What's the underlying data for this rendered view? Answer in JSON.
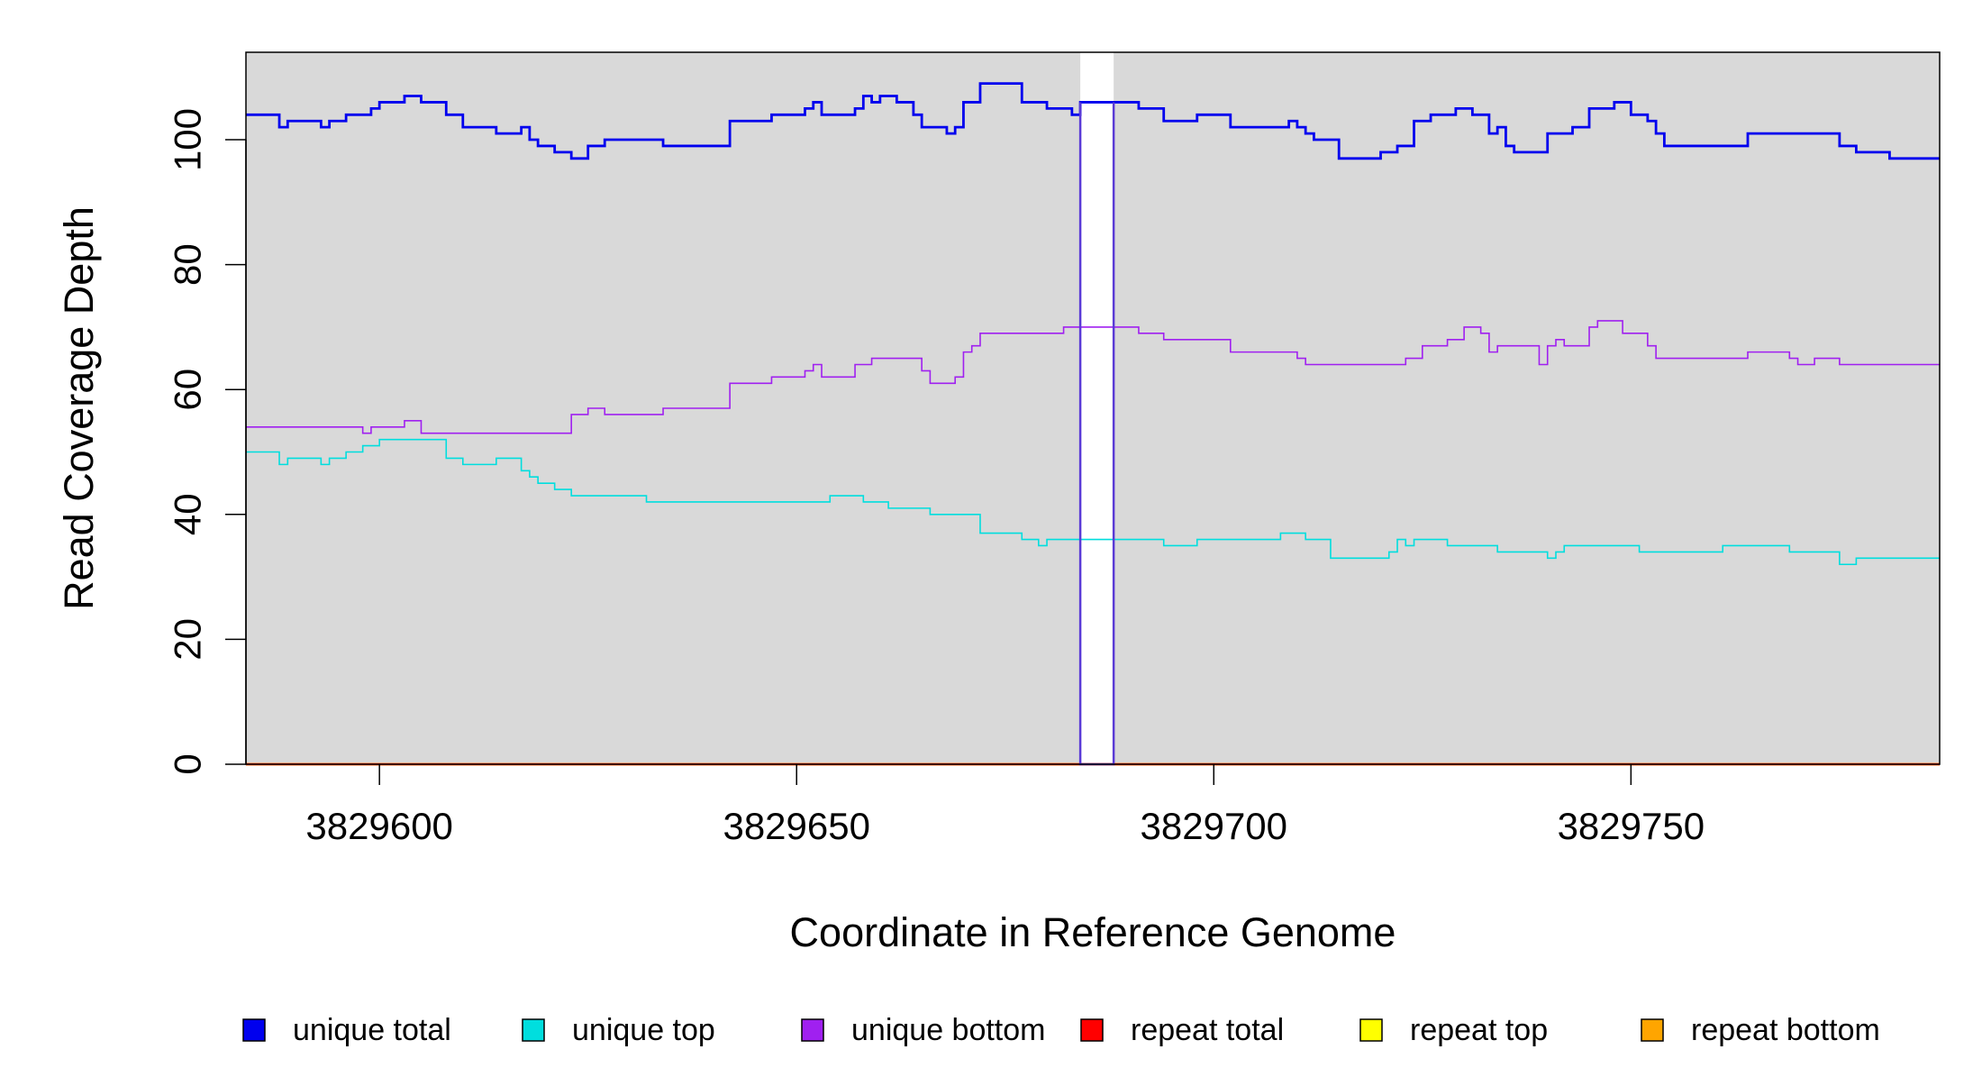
{
  "chart_data": {
    "type": "line",
    "step": true,
    "xlabel": "Coordinate in Reference Genome",
    "ylabel": "Read Coverage Depth",
    "xlim": [
      3829584,
      3829787
    ],
    "ylim": [
      0,
      114
    ],
    "x_ticks": [
      3829600,
      3829650,
      3829700,
      3829750
    ],
    "x_tick_labels": [
      "3829600",
      "3829650",
      "3829700",
      "3829750"
    ],
    "y_ticks": [
      0,
      20,
      40,
      60,
      80,
      100
    ],
    "y_tick_labels": [
      "0",
      "20",
      "40",
      "60",
      "80",
      "100"
    ],
    "plot_background": "#d9d9d9",
    "grid": false,
    "legend_position": "bottom",
    "highlight_region": {
      "x_start": 3829684,
      "x_end": 3829688,
      "color": "#ffffff"
    },
    "series": [
      {
        "name": "unique total",
        "color": "#0000ee",
        "x": [
          3829584,
          3829588,
          3829589,
          3829593,
          3829594,
          3829596,
          3829599,
          3829600,
          3829603,
          3829605,
          3829608,
          3829610,
          3829614,
          3829617,
          3829618,
          3829619,
          3829621,
          3829623,
          3829625,
          3829627,
          3829634,
          3829642,
          3829647,
          3829651,
          3829652,
          3829653,
          3829657,
          3829658,
          3829659,
          3829660,
          3829662,
          3829664,
          3829665,
          3829668,
          3829669,
          3829670,
          3829672,
          3829677,
          3829680,
          3829683,
          3829684,
          3829688,
          3829691,
          3829694,
          3829698,
          3829702,
          3829709,
          3829710,
          3829711,
          3829712,
          3829715,
          3829720,
          3829722,
          3829724,
          3829726,
          3829729,
          3829731,
          3829733,
          3829734,
          3829735,
          3829736,
          3829740,
          3829743,
          3829745,
          3829748,
          3829750,
          3829752,
          3829753,
          3829754,
          3829756,
          3829757,
          3829764,
          3829769,
          3829775,
          3829777,
          3829781,
          3829787
        ],
        "values": [
          104,
          102,
          103,
          102,
          103,
          104,
          105,
          106,
          107,
          106,
          104,
          102,
          101,
          102,
          100,
          99,
          98,
          97,
          99,
          100,
          99,
          103,
          104,
          105,
          106,
          104,
          105,
          107,
          106,
          107,
          106,
          104,
          102,
          101,
          102,
          106,
          109,
          106,
          105,
          104,
          106,
          106,
          105,
          103,
          104,
          102,
          103,
          102,
          101,
          100,
          97,
          98,
          99,
          103,
          104,
          105,
          104,
          101,
          102,
          99,
          98,
          101,
          102,
          105,
          106,
          104,
          103,
          101,
          99,
          99,
          99,
          101,
          101,
          99,
          98,
          97,
          97
        ]
      },
      {
        "name": "unique top",
        "color": "#00dede",
        "x": [
          3829584,
          3829588,
          3829589,
          3829593,
          3829594,
          3829596,
          3829598,
          3829600,
          3829605,
          3829608,
          3829610,
          3829614,
          3829617,
          3829618,
          3829619,
          3829621,
          3829623,
          3829625,
          3829632,
          3829640,
          3829654,
          3829655,
          3829658,
          3829661,
          3829666,
          3829672,
          3829677,
          3829679,
          3829680,
          3829684,
          3829688,
          3829694,
          3829698,
          3829708,
          3829711,
          3829714,
          3829721,
          3829722,
          3829723,
          3829724,
          3829725,
          3829728,
          3829734,
          3829740,
          3829741,
          3829742,
          3829743,
          3829746,
          3829751,
          3829761,
          3829769,
          3829775,
          3829777,
          3829787
        ],
        "values": [
          50,
          48,
          49,
          48,
          49,
          50,
          51,
          52,
          52,
          49,
          48,
          49,
          47,
          46,
          45,
          44,
          43,
          43,
          42,
          42,
          43,
          43,
          42,
          41,
          40,
          37,
          36,
          35,
          36,
          36,
          36,
          35,
          36,
          37,
          36,
          33,
          34,
          36,
          35,
          36,
          36,
          35,
          34,
          33,
          34,
          35,
          35,
          35,
          34,
          35,
          34,
          32,
          33,
          33
        ]
      },
      {
        "name": "unique bottom",
        "color": "#a020f0",
        "x": [
          3829584,
          3829598,
          3829599,
          3829603,
          3829605,
          3829608,
          3829623,
          3829625,
          3829627,
          3829634,
          3829642,
          3829647,
          3829651,
          3829652,
          3829653,
          3829657,
          3829659,
          3829665,
          3829666,
          3829669,
          3829670,
          3829671,
          3829672,
          3829682,
          3829684,
          3829688,
          3829691,
          3829694,
          3829702,
          3829710,
          3829711,
          3829719,
          3829723,
          3829725,
          3829728,
          3829730,
          3829732,
          3829733,
          3829734,
          3829739,
          3829740,
          3829741,
          3829742,
          3829745,
          3829746,
          3829749,
          3829752,
          3829753,
          3829764,
          3829769,
          3829770,
          3829772,
          3829775,
          3829787
        ],
        "values": [
          54,
          53,
          54,
          55,
          53,
          53,
          56,
          57,
          56,
          57,
          61,
          62,
          63,
          64,
          62,
          64,
          65,
          63,
          61,
          62,
          66,
          67,
          69,
          70,
          70,
          70,
          69,
          68,
          66,
          65,
          64,
          64,
          65,
          67,
          68,
          70,
          69,
          66,
          67,
          64,
          67,
          68,
          67,
          70,
          71,
          69,
          67,
          65,
          66,
          65,
          64,
          65,
          64,
          64
        ]
      },
      {
        "name": "repeat total",
        "color": "#ff0000",
        "x": [
          3829584,
          3829787
        ],
        "values": [
          0,
          0
        ]
      },
      {
        "name": "repeat top",
        "color": "#ffff00",
        "x": [
          3829584,
          3829787
        ],
        "values": [
          0,
          0
        ]
      },
      {
        "name": "repeat bottom",
        "color": "#ffa500",
        "x": [
          3829584,
          3829787
        ],
        "values": [
          0,
          0
        ]
      }
    ]
  }
}
